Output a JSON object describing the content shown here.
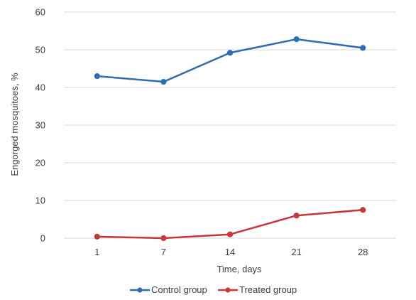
{
  "chart_data": {
    "type": "line",
    "title": "",
    "xlabel": "Time, days",
    "ylabel": "Engorged mosquitoes, %",
    "categories": [
      "1",
      "7",
      "14",
      "21",
      "28"
    ],
    "ylim": [
      0,
      60
    ],
    "yticks": [
      0,
      10,
      20,
      30,
      40,
      50,
      60
    ],
    "grid": true,
    "legend": "bottom",
    "series": [
      {
        "name": "Control group",
        "color": "#2e6db4",
        "values": [
          43,
          41.5,
          49.2,
          52.8,
          50.5
        ]
      },
      {
        "name": "Treated group",
        "color": "#c8373a",
        "values": [
          0.4,
          0,
          1,
          6,
          7.5
        ]
      }
    ]
  }
}
